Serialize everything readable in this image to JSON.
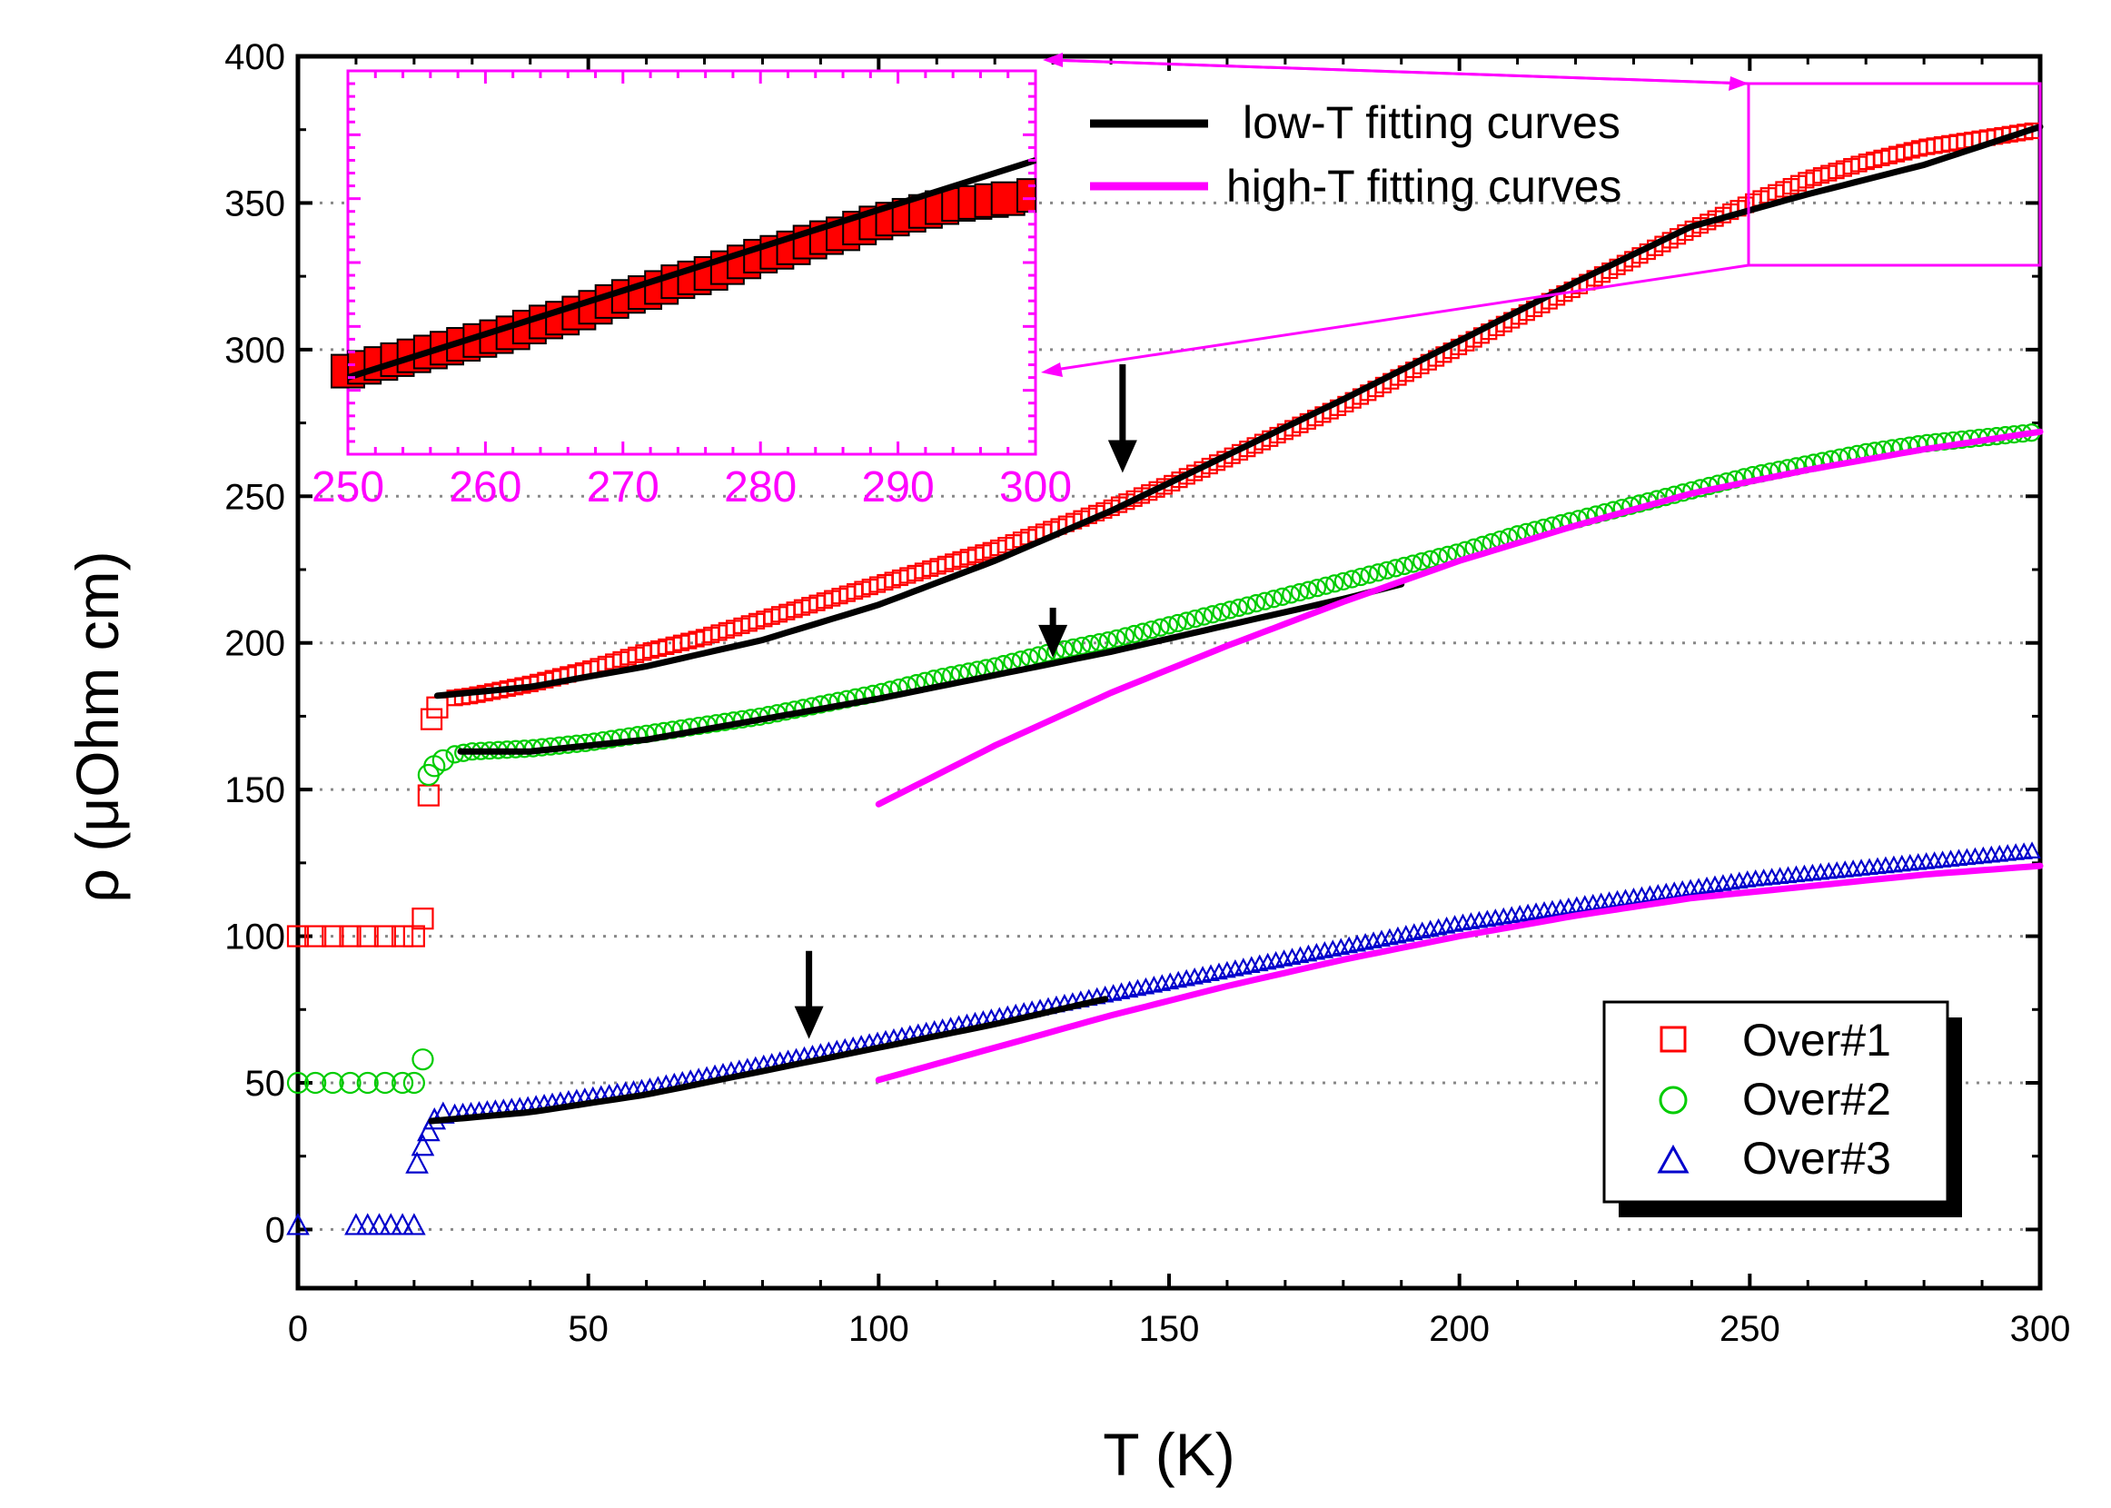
{
  "chart_data": {
    "type": "scatter",
    "title": "",
    "xlabel": "T (K)",
    "ylabel": "ρ (μOhm cm)",
    "xlim": [
      0,
      300
    ],
    "ylim": [
      -20,
      400
    ],
    "xticks": [
      "0",
      "50",
      "100",
      "150",
      "200",
      "250",
      "300"
    ],
    "yticks": [
      "0",
      "50",
      "100",
      "150",
      "200",
      "250",
      "300",
      "350",
      "400"
    ],
    "grid": "horizontal dotted",
    "colors": {
      "over1": "#ff0000",
      "over2": "#00cc00",
      "over3": "#0000cc",
      "low_fit": "#000000",
      "high_fit": "#ff00ff"
    },
    "series": [
      {
        "name": "Over#1",
        "marker": "square",
        "color": "#ff0000",
        "x": [
          0,
          3,
          6,
          9,
          12,
          15,
          18,
          20,
          21.5,
          22.5,
          23,
          24,
          26,
          30,
          40,
          50,
          60,
          70,
          80,
          90,
          100,
          110,
          120,
          130,
          140,
          150,
          160,
          170,
          180,
          190,
          200,
          210,
          220,
          230,
          240,
          250,
          260,
          270,
          280,
          290,
          300
        ],
        "y": [
          100,
          100,
          100,
          100,
          100,
          100,
          100,
          100,
          106,
          148,
          174,
          178,
          181,
          182,
          186,
          191,
          197,
          202,
          208,
          214,
          220,
          226,
          232,
          239,
          246,
          254,
          263,
          272,
          281,
          291,
          301,
          311,
          321,
          331,
          341,
          350,
          358,
          364,
          369,
          372,
          375
        ]
      },
      {
        "name": "Over#2",
        "marker": "circle",
        "color": "#00cc00",
        "x": [
          0,
          3,
          6,
          9,
          12,
          15,
          18,
          20,
          21.5,
          22.5,
          23.5,
          25,
          27,
          30,
          40,
          50,
          60,
          70,
          80,
          90,
          100,
          110,
          120,
          130,
          140,
          150,
          160,
          170,
          180,
          190,
          200,
          210,
          220,
          230,
          240,
          250,
          260,
          270,
          280,
          290,
          300
        ],
        "y": [
          50,
          50,
          50,
          50,
          50,
          50,
          50,
          50,
          58,
          155,
          158,
          160,
          162,
          163,
          164,
          166,
          169,
          172,
          175,
          179,
          183,
          188,
          192,
          197,
          201,
          206,
          211,
          216,
          221,
          226,
          231,
          237,
          242,
          247,
          252,
          257,
          261,
          265,
          268,
          270,
          272
        ]
      },
      {
        "name": "Over#3",
        "marker": "triangle",
        "color": "#0000cc",
        "x": [
          0,
          10,
          12,
          14,
          16,
          18,
          20,
          20.5,
          21.5,
          22.5,
          23.5,
          25,
          30,
          40,
          50,
          60,
          70,
          80,
          90,
          100,
          110,
          120,
          130,
          140,
          150,
          160,
          170,
          180,
          190,
          200,
          210,
          220,
          230,
          240,
          250,
          260,
          270,
          280,
          290,
          300
        ],
        "y": [
          1,
          1,
          1,
          1,
          1,
          1,
          1,
          22,
          28,
          33,
          37,
          39,
          40,
          42,
          45,
          48,
          52,
          56,
          60,
          64,
          68,
          72,
          76,
          80,
          84,
          88,
          92,
          96,
          100,
          104,
          107,
          110,
          113,
          116,
          119,
          121,
          123,
          125,
          127,
          129
        ]
      }
    ],
    "fits": [
      {
        "name": "low-T fitting curves",
        "color": "#000000",
        "curves": [
          {
            "x": [
              24,
              40,
              60,
              80,
              100,
              120,
              140,
              160,
              180,
              200,
              220,
              240,
              260,
              280,
              300
            ],
            "y": [
              182,
              185,
              192,
              201,
              213,
              228,
              245,
              264,
              283,
              303,
              323,
              342,
              353,
              363,
              376
            ]
          },
          {
            "x": [
              28,
              40,
              60,
              80,
              100,
              120,
              140,
              160,
              180,
              190
            ],
            "y": [
              163,
              163,
              167,
              174,
              181,
              189,
              197,
              206,
              215,
              220
            ]
          },
          {
            "x": [
              23,
              40,
              60,
              80,
              100,
              120,
              140
            ],
            "y": [
              37,
              40,
              46,
              54,
              62,
              70,
              79
            ]
          }
        ]
      },
      {
        "name": "high-T fitting curves",
        "color": "#ff00ff",
        "curves": [
          {
            "x": [
              100,
              120,
              140,
              160,
              180,
              200,
              220,
              240,
              260,
              280,
              300
            ],
            "y": [
              145,
              165,
              183,
              199,
              214,
              228,
              240,
              251,
              259,
              266,
              272
            ]
          },
          {
            "x": [
              100,
              120,
              140,
              160,
              180,
              200,
              220,
              240,
              260,
              280,
              300
            ],
            "y": [
              51,
              62,
              73,
              83,
              92,
              100,
              107,
              113,
              117,
              121,
              124
            ]
          }
        ]
      }
    ],
    "annotations": {
      "arrows_at_T": [
        {
          "x": 142,
          "y_from": 295,
          "y_to": 258
        },
        {
          "x": 130,
          "y_from": 212,
          "y_to": 195
        },
        {
          "x": 88,
          "y_from": 95,
          "y_to": 65
        }
      ]
    },
    "inset": {
      "xlim": [
        250,
        300
      ],
      "ylim": [
        330,
        390
      ],
      "xticks": [
        "250",
        "260",
        "270",
        "280",
        "290",
        "300"
      ],
      "data": {
        "x": [
          250,
          252,
          254,
          256,
          258,
          260,
          262,
          264,
          266,
          268,
          270,
          272,
          274,
          276,
          278,
          280,
          282,
          284,
          286,
          288,
          290,
          292,
          294,
          296,
          298,
          300
        ],
        "y": [
          343,
          344,
          345,
          346,
          347,
          348,
          349,
          350.5,
          351.5,
          353,
          354.5,
          355.5,
          357,
          358,
          359.5,
          361,
          362,
          363.5,
          364.5,
          366,
          367,
          368,
          369,
          369.5,
          370,
          370.5
        ]
      },
      "fit": {
        "x": [
          250,
          300
        ],
        "y": [
          342,
          376
        ]
      }
    },
    "legend": {
      "position": "lower-right",
      "entries": [
        {
          "label": "Over#1",
          "marker": "square",
          "color": "#ff0000"
        },
        {
          "label": "Over#2",
          "marker": "circle",
          "color": "#00cc00"
        },
        {
          "label": "Over#3",
          "marker": "triangle",
          "color": "#0000cc"
        }
      ]
    },
    "fit_legend": {
      "position": "top-center",
      "entries": [
        {
          "label": "low-T fitting curves",
          "color": "#000000"
        },
        {
          "label": "high-T fitting curves",
          "color": "#ff00ff"
        }
      ]
    }
  }
}
